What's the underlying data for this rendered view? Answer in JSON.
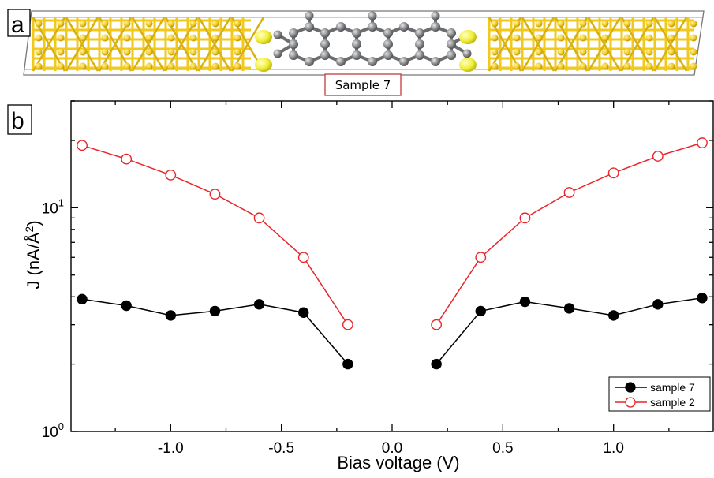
{
  "panels": {
    "a_label": "a",
    "b_label": "b",
    "structure_caption": "Sample 7"
  },
  "colors": {
    "sample7": "#000000",
    "sample2": "#e8262b",
    "gold_atoms": "#f0c91c",
    "sulfur_atoms": "#f2ef3a",
    "carbon_atoms": "#8a8c8e",
    "caption_box": "#c23a3a"
  },
  "chart_data": {
    "type": "scatter",
    "xlabel": "Bias voltage (V)",
    "ylabel_main": "J (nA/Å",
    "ylabel_sup": "2",
    "ylabel_end": ")",
    "xlim": [
      -1.45,
      1.45
    ],
    "ylim": [
      1,
      30
    ],
    "yscale": "log",
    "x_ticks": [
      -1.0,
      -0.5,
      0.0,
      0.5,
      1.0
    ],
    "x_tick_labels": [
      "-1.0",
      "-0.5",
      "0.0",
      "0.5",
      "1.0"
    ],
    "y_ticks": [
      {
        "value": 1,
        "base": "10",
        "exp": "0"
      },
      {
        "value": 10,
        "base": "10",
        "exp": "1"
      }
    ],
    "legend_position": "bottom-right",
    "series": [
      {
        "name": "sample 7",
        "marker": "filled-circle",
        "color": "#000000",
        "segments": [
          [
            [
              -1.4,
              3.9
            ],
            [
              -1.2,
              3.65
            ],
            [
              -1.0,
              3.3
            ],
            [
              -0.8,
              3.45
            ],
            [
              -0.6,
              3.7
            ],
            [
              -0.4,
              3.4
            ],
            [
              -0.2,
              2.0
            ]
          ],
          [
            [
              0.2,
              2.0
            ],
            [
              0.4,
              3.45
            ],
            [
              0.6,
              3.8
            ],
            [
              0.8,
              3.55
            ],
            [
              1.0,
              3.3
            ],
            [
              1.2,
              3.7
            ],
            [
              1.4,
              3.95
            ]
          ]
        ]
      },
      {
        "name": "sample 2",
        "marker": "open-circle",
        "color": "#e8262b",
        "segments": [
          [
            [
              -1.4,
              19.0
            ],
            [
              -1.2,
              16.5
            ],
            [
              -1.0,
              14.0
            ],
            [
              -0.8,
              11.5
            ],
            [
              -0.6,
              9.0
            ],
            [
              -0.4,
              6.0
            ],
            [
              -0.2,
              3.0
            ]
          ],
          [
            [
              0.2,
              3.0
            ],
            [
              0.4,
              6.0
            ],
            [
              0.6,
              9.0
            ],
            [
              0.8,
              11.7
            ],
            [
              1.0,
              14.3
            ],
            [
              1.2,
              17.0
            ],
            [
              1.4,
              19.5
            ]
          ]
        ]
      }
    ]
  }
}
